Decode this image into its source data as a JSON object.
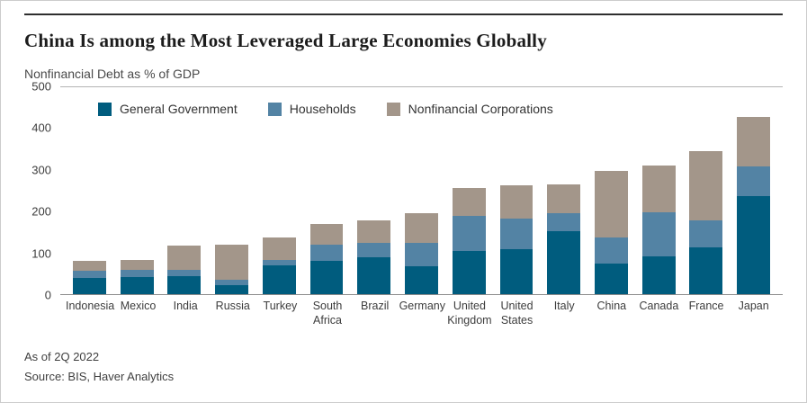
{
  "card": {
    "title": "China Is among the Most Leveraged Large Economies Globally",
    "subtitle": "Nonfinancial Debt as % of GDP",
    "footnote_asof": "As of 2Q 2022",
    "footnote_source": "Source: BIS, Haver Analytics"
  },
  "chart_data": {
    "type": "bar",
    "stacked": true,
    "title": "China Is among the Most Leveraged Large Economies Globally",
    "ylabel": "Nonfinancial Debt as % of GDP",
    "ylim": [
      0,
      500
    ],
    "yticks": [
      0,
      100,
      200,
      300,
      400,
      500
    ],
    "grid": false,
    "legend_position": "top-left-inside",
    "categories": [
      "Indonesia",
      "Mexico",
      "India",
      "Russia",
      "Turkey",
      "South Africa",
      "Brazil",
      "Germany",
      "United Kingdom",
      "United States",
      "Italy",
      "China",
      "Canada",
      "France",
      "Japan"
    ],
    "series": [
      {
        "name": "General Government",
        "color": "#005c7e",
        "values": [
          40,
          42,
          44,
          22,
          70,
          80,
          90,
          68,
          105,
          108,
          152,
          74,
          91,
          113,
          238
        ]
      },
      {
        "name": "Households",
        "color": "#5383a4",
        "values": [
          17,
          16,
          14,
          13,
          12,
          40,
          35,
          55,
          85,
          75,
          43,
          63,
          106,
          65,
          70
        ]
      },
      {
        "name": "Nonfinancial Corporations",
        "color": "#a3968a",
        "values": [
          24,
          25,
          59,
          85,
          56,
          50,
          53,
          72,
          67,
          81,
          70,
          160,
          115,
          167,
          120
        ]
      }
    ]
  }
}
